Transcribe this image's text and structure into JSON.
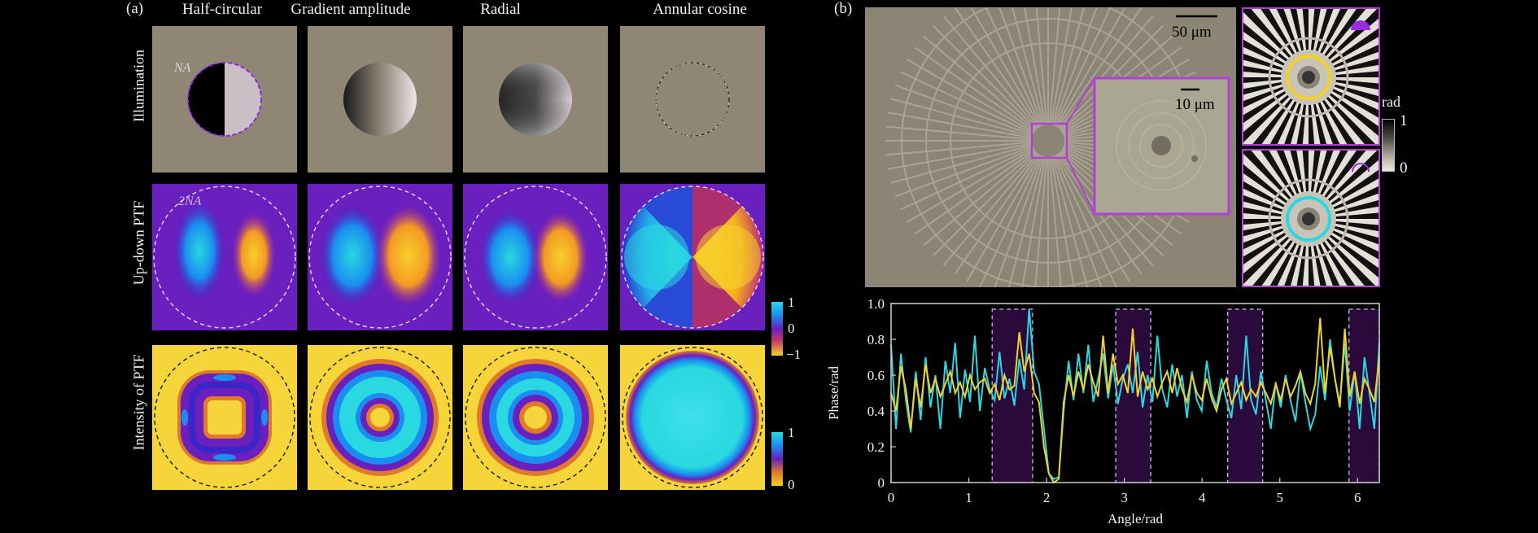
{
  "figure": {
    "panel_a_label": "(a)",
    "panel_b_label": "(b)",
    "columns": [
      "Half-circular",
      "Gradient amplitude",
      "Radial",
      "Annular cosine"
    ],
    "rows": [
      "Illumination",
      "Up-down PTF",
      "Intensity of PTF"
    ],
    "na_label": "NA",
    "two_na_label": "2NA",
    "ptf_colorbar": {
      "top": "1",
      "mid": "0",
      "bottom": "−1"
    },
    "intensity_colorbar": {
      "top": "1",
      "bottom": "0"
    },
    "scale_bar_large": "50 μm",
    "scale_bar_small": "10 μm",
    "rad_colorbar": {
      "title": "rad",
      "top": "1",
      "bottom": "0"
    }
  },
  "colors": {
    "purple": "#8a2be2",
    "magenta_box": "#b23fd6",
    "cyan": "#29d8e0",
    "yellow": "#f3d12a",
    "gray_bg": "#8f8674",
    "dark_purple_band": "#2a0a3a"
  },
  "chart_data": {
    "type": "line",
    "xlabel": "Angle/rad",
    "ylabel": "Phase/rad",
    "xlim": [
      0,
      6.28
    ],
    "ylim": [
      0,
      1.0
    ],
    "xticks": [
      "0",
      "1",
      "2",
      "3",
      "4",
      "5",
      "6"
    ],
    "yticks": [
      "0",
      "0.2",
      "0.4",
      "0.6",
      "0.8",
      "1.0"
    ],
    "shaded_bands": [
      [
        1.3,
        1.82
      ],
      [
        2.89,
        3.34
      ],
      [
        4.33,
        4.78
      ],
      [
        5.89,
        6.28
      ]
    ],
    "series": [
      {
        "color": "#29d8e0",
        "values": [
          0.77,
          0.3,
          0.72,
          0.46,
          0.28,
          0.62,
          0.35,
          0.7,
          0.42,
          0.6,
          0.3,
          0.68,
          0.5,
          0.78,
          0.36,
          0.63,
          0.45,
          0.82,
          0.4,
          0.64,
          0.52,
          0.46,
          0.73,
          0.47,
          0.58,
          0.43,
          0.69,
          0.52,
          0.97,
          0.62,
          0.55,
          0.3,
          0.05,
          0.02,
          0.03,
          0.4,
          0.68,
          0.46,
          0.72,
          0.5,
          0.77,
          0.45,
          0.58,
          0.72,
          0.47,
          0.66,
          0.44,
          0.58,
          0.66,
          0.5,
          0.73,
          0.42,
          0.6,
          0.45,
          0.82,
          0.52,
          0.42,
          0.66,
          0.48,
          0.6,
          0.36,
          0.62,
          0.46,
          0.4,
          0.68,
          0.5,
          0.42,
          0.58,
          0.46,
          0.36,
          0.6,
          0.41,
          0.82,
          0.46,
          0.38,
          0.62,
          0.46,
          0.3,
          0.56,
          0.42,
          0.6,
          0.46,
          0.34,
          0.62,
          0.45,
          0.3,
          0.38,
          0.65,
          0.46,
          0.8,
          0.58,
          0.44,
          0.78,
          0.4,
          0.62,
          0.3,
          0.7,
          0.5,
          0.3,
          0.78
        ]
      },
      {
        "color": "#f3d12a",
        "values": [
          0.5,
          0.4,
          0.65,
          0.52,
          0.3,
          0.58,
          0.42,
          0.66,
          0.5,
          0.58,
          0.48,
          0.55,
          0.62,
          0.5,
          0.56,
          0.48,
          0.6,
          0.52,
          0.56,
          0.58,
          0.5,
          0.55,
          0.46,
          0.6,
          0.52,
          0.54,
          0.84,
          0.62,
          0.72,
          0.5,
          0.45,
          0.2,
          0.05,
          0.0,
          0.02,
          0.45,
          0.6,
          0.48,
          0.62,
          0.52,
          0.66,
          0.56,
          0.48,
          0.82,
          0.5,
          0.72,
          0.55,
          0.6,
          0.5,
          0.86,
          0.48,
          0.62,
          0.52,
          0.58,
          0.48,
          0.56,
          0.62,
          0.5,
          0.64,
          0.52,
          0.45,
          0.6,
          0.5,
          0.46,
          0.58,
          0.47,
          0.4,
          0.52,
          0.58,
          0.44,
          0.5,
          0.56,
          0.46,
          0.52,
          0.48,
          0.56,
          0.5,
          0.44,
          0.55,
          0.46,
          0.58,
          0.48,
          0.54,
          0.62,
          0.5,
          0.44,
          0.55,
          0.92,
          0.5,
          0.76,
          0.58,
          0.42,
          0.86,
          0.48,
          0.62,
          0.44,
          0.58,
          0.52,
          0.45,
          0.7
        ]
      }
    ]
  }
}
